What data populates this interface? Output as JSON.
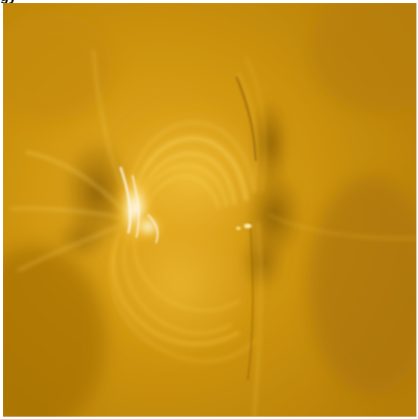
{
  "caption": {
    "text": "gy"
  },
  "image": {
    "subject": "solar-coronal-loops",
    "palette": {
      "base": "#c68e0c",
      "dark": "#8a5c05",
      "mid": "#d9a21c",
      "bright": "#f2c237",
      "highlight": "#fff4c8"
    }
  }
}
